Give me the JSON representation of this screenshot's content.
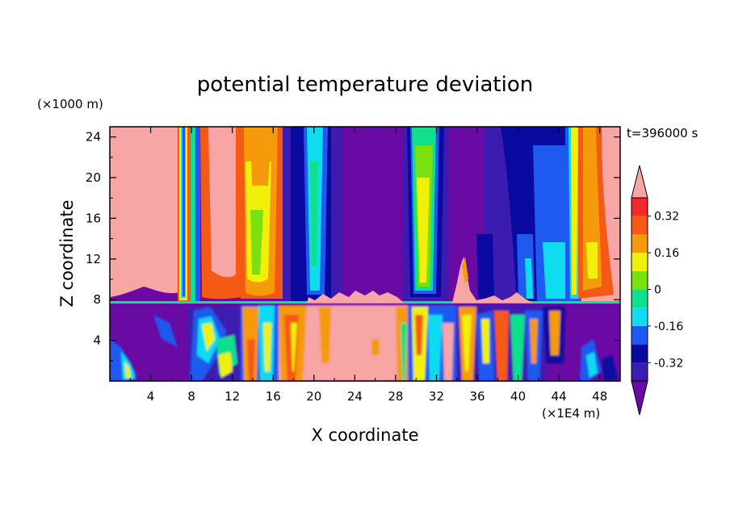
{
  "chart_data": {
    "type": "heatmap",
    "title": "potential temperature deviation",
    "xlabel": "X coordinate",
    "ylabel": "Z coordinate",
    "x_unit": "(×1E4 m)",
    "y_unit": "(×1000 m)",
    "time_label": "t=396000 s",
    "xlim": [
      0,
      50
    ],
    "ylim": [
      0,
      25
    ],
    "x_ticks": [
      4,
      8,
      12,
      16,
      20,
      24,
      28,
      32,
      36,
      40,
      44,
      48
    ],
    "y_ticks": [
      4,
      8,
      12,
      16,
      20,
      24
    ],
    "colorbar": {
      "levels": [
        -0.4,
        -0.32,
        -0.24,
        -0.16,
        -0.08,
        0,
        0.08,
        0.16,
        0.24,
        0.32,
        0.4
      ],
      "tick_labels": [
        "-0.32",
        "-0.16",
        "0",
        "0.16",
        "0.32"
      ],
      "tick_values": [
        -0.32,
        -0.16,
        0,
        0.16,
        0.32
      ],
      "colors": [
        "#6a0aa5",
        "#3c1cb0",
        "#0a0aa0",
        "#1e5af0",
        "#10dcf0",
        "#10e08c",
        "#7ae010",
        "#f0f00a",
        "#f59a0a",
        "#f55a14",
        "#f52828",
        "#f7a5a5"
      ]
    },
    "upper_columns": [
      {
        "x": 3.2,
        "z_top": 8.9,
        "level": "pink"
      },
      {
        "x": 7.2,
        "width": 1.4,
        "level": "red"
      },
      {
        "x": 9.6,
        "width": 1.2,
        "level": "pink"
      },
      {
        "x": 14.2,
        "width": 3.0,
        "level": "orange"
      },
      {
        "x": 20.2,
        "width": 1.4,
        "level": "cyan"
      },
      {
        "x": 30.4,
        "width": 1.6,
        "level": "yellow"
      },
      {
        "x": 46.0,
        "width": 2.4,
        "level": "orange"
      }
    ],
    "inversion_height": 7.8
  }
}
